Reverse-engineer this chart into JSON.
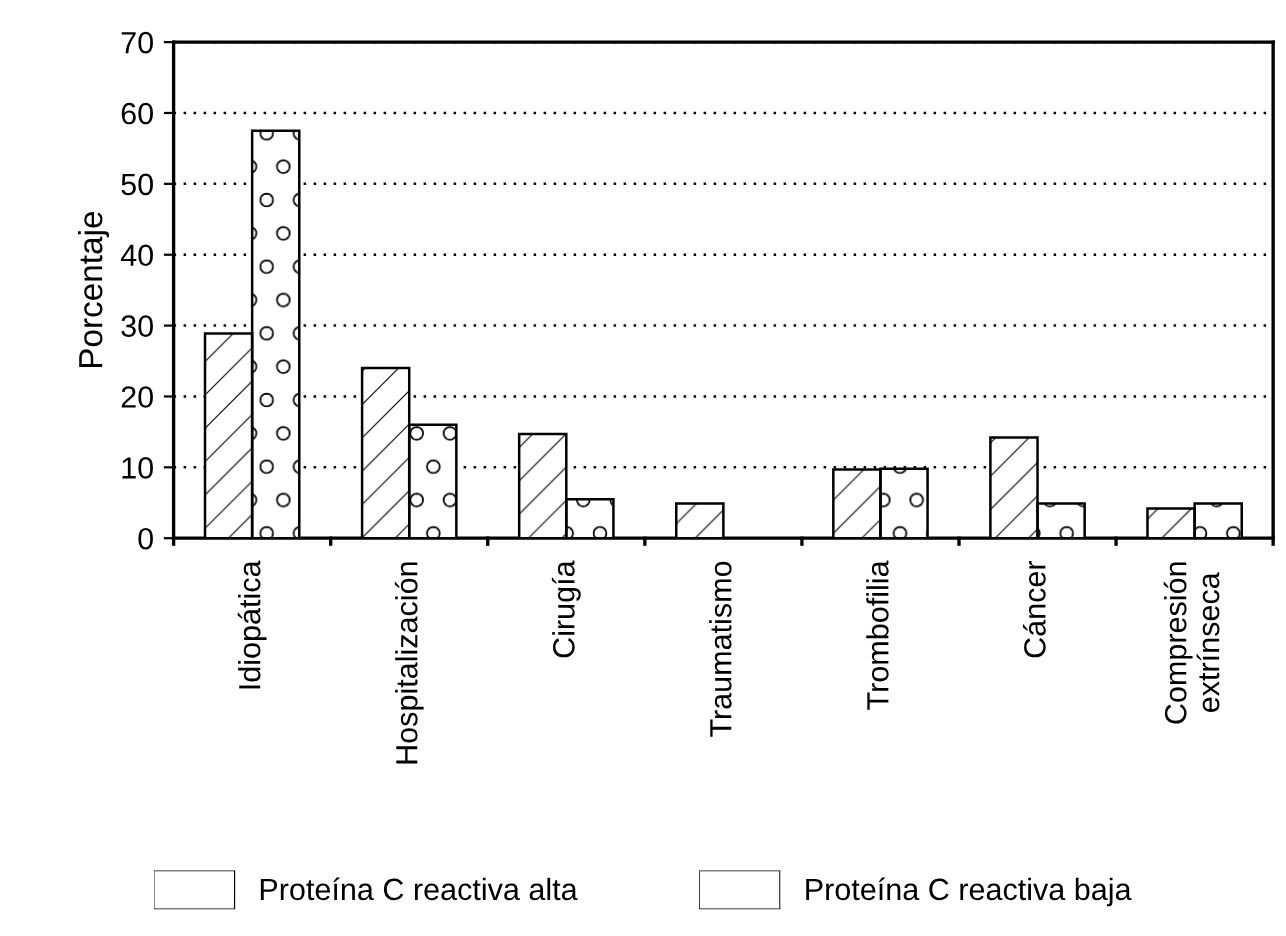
{
  "chart_data": {
    "type": "bar",
    "ylabel": "Porcentaje",
    "categories": [
      "Idiopática",
      "Hospitalización",
      "Cirugía",
      "Traumatismo",
      "Trombofilia",
      "Cáncer",
      "Compresión\nextrínseca"
    ],
    "series": [
      {
        "name": "Proteína C reactiva alta",
        "color": "#ffffff",
        "values": [
          28.9,
          24.0,
          14.7,
          4.9,
          9.7,
          14.2,
          4.2
        ]
      },
      {
        "name": "Proteína C reactiva baja",
        "color": "#ffffff",
        "values": [
          57.5,
          16.0,
          5.5,
          null,
          9.8,
          4.9,
          4.9
        ]
      }
    ],
    "ylim": [
      0,
      70
    ],
    "yticks": [
      0,
      10,
      20,
      30,
      40,
      50,
      60,
      70
    ],
    "grid": "y",
    "legend": "bottom"
  }
}
